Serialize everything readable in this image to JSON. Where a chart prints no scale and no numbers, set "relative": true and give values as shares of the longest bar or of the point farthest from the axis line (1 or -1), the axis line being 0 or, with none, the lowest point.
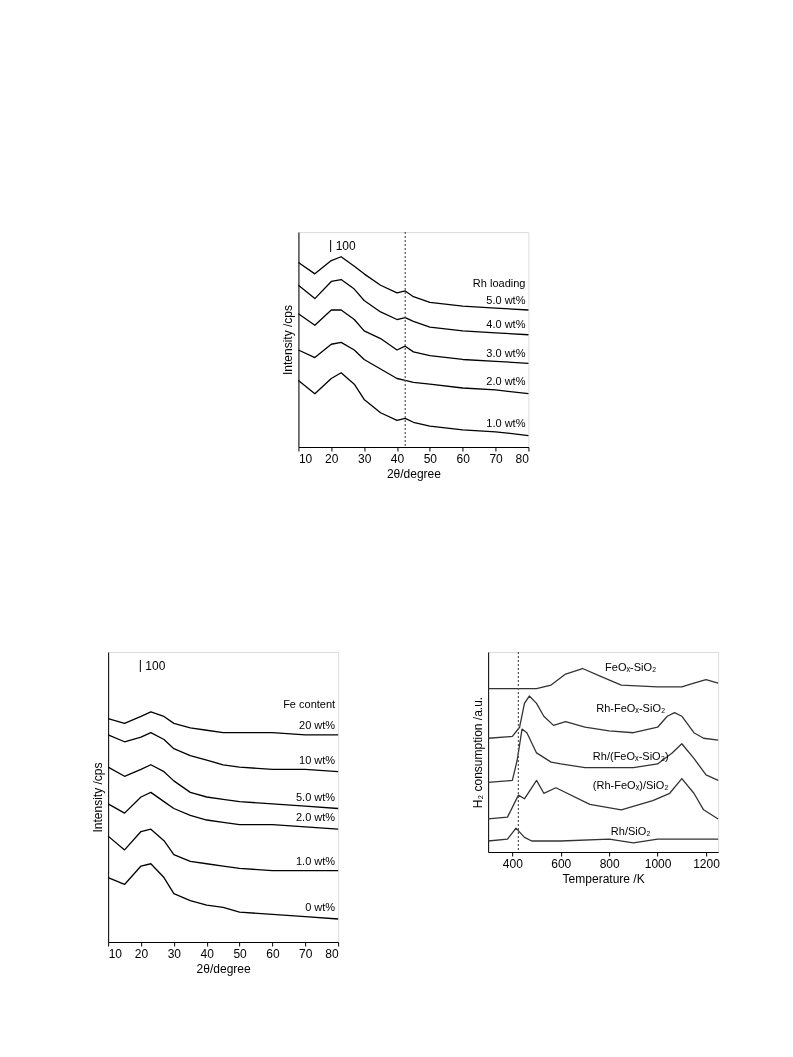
{
  "chart_data": [
    {
      "type": "line",
      "relative": true,
      "xlabel": "2θ/degree",
      "ylabel": "Intensity /cps",
      "legend_title": "Rh loading",
      "annotations": [
        "100"
      ],
      "xlim": [
        10,
        80
      ],
      "xticks": [
        10,
        20,
        30,
        40,
        50,
        60,
        70,
        80
      ],
      "grid": false,
      "line_style": "solid",
      "x": [
        10,
        15,
        20,
        23,
        27,
        30,
        35,
        40,
        42.5,
        45,
        50,
        60,
        70,
        80
      ],
      "ref_lines": [
        {
          "axis": "x",
          "value": 42.5,
          "line_style": "dotted",
          "color": "#555555"
        }
      ],
      "series": [
        {
          "name": "5.0 wt%",
          "color": "#000000",
          "values": [
            0.97,
            0.91,
            0.98,
            1,
            0.95,
            0.91,
            0.85,
            0.81,
            0.82,
            0.79,
            0.76,
            0.74,
            0.73,
            0.72
          ]
        },
        {
          "name": "4.0 wt%",
          "color": "#000000",
          "values": [
            0.85,
            0.78,
            0.87,
            0.88,
            0.83,
            0.77,
            0.71,
            0.67,
            0.68,
            0.66,
            0.63,
            0.61,
            0.6,
            0.59
          ]
        },
        {
          "name": "3.0 wt%",
          "color": "#000000",
          "values": [
            0.7,
            0.64,
            0.72,
            0.72,
            0.67,
            0.61,
            0.57,
            0.51,
            0.53,
            0.5,
            0.48,
            0.46,
            0.45,
            0.44
          ]
        },
        {
          "name": "2.0 wt%",
          "color": "#000000",
          "values": [
            0.51,
            0.47,
            0.54,
            0.55,
            0.51,
            0.46,
            0.41,
            0.36,
            0.35,
            0.34,
            0.33,
            0.31,
            0.3,
            0.28
          ]
        },
        {
          "name": "1.0 wt%",
          "color": "#000000",
          "values": [
            0.35,
            0.28,
            0.36,
            0.39,
            0.33,
            0.25,
            0.18,
            0.14,
            0.15,
            0.13,
            0.11,
            0.09,
            0.08,
            0.06
          ]
        }
      ]
    },
    {
      "type": "line",
      "relative": true,
      "xlabel": "2θ/degree",
      "ylabel": "Intensity /cps",
      "legend_title": "Fe content",
      "annotations": [
        "100"
      ],
      "xlim": [
        10,
        80
      ],
      "xticks": [
        10,
        20,
        30,
        40,
        50,
        60,
        70,
        80
      ],
      "grid": false,
      "line_style": "solid",
      "x": [
        10,
        15,
        20,
        23,
        27,
        30,
        35,
        40,
        45,
        50,
        60,
        70,
        80
      ],
      "series": [
        {
          "name": "20 wt%",
          "color": "#000000",
          "values": [
            0.97,
            0.95,
            0.98,
            1,
            0.98,
            0.95,
            0.93,
            0.92,
            0.91,
            0.91,
            0.91,
            0.9,
            0.9
          ]
        },
        {
          "name": "10 wt%",
          "color": "#000000",
          "values": [
            0.9,
            0.87,
            0.89,
            0.91,
            0.88,
            0.84,
            0.81,
            0.79,
            0.77,
            0.76,
            0.75,
            0.75,
            0.74
          ]
        },
        {
          "name": "5.0 wt%",
          "color": "#000000",
          "values": [
            0.76,
            0.72,
            0.75,
            0.77,
            0.74,
            0.7,
            0.65,
            0.63,
            0.62,
            0.61,
            0.6,
            0.59,
            0.58
          ]
        },
        {
          "name": "2.0 wt%",
          "color": "#000000",
          "values": [
            0.6,
            0.56,
            0.63,
            0.65,
            0.61,
            0.58,
            0.55,
            0.53,
            0.52,
            0.51,
            0.51,
            0.5,
            0.49
          ]
        },
        {
          "name": "1.0 wt%",
          "color": "#000000",
          "values": [
            0.46,
            0.4,
            0.48,
            0.49,
            0.44,
            0.38,
            0.35,
            0.34,
            0.33,
            0.32,
            0.31,
            0.31,
            0.31
          ]
        },
        {
          "name": "0 wt%",
          "color": "#000000",
          "values": [
            0.28,
            0.25,
            0.33,
            0.34,
            0.28,
            0.21,
            0.18,
            0.16,
            0.15,
            0.13,
            0.12,
            0.11,
            0.1
          ]
        }
      ]
    },
    {
      "type": "line",
      "relative": true,
      "xlabel": "Temperature /K",
      "ylabel": "H₂ consumption /a.u.",
      "xlim": [
        300,
        1250
      ],
      "xticks": [
        400,
        600,
        800,
        {
          "value": 1000,
          "label": "1000"
        },
        {
          "value": 1200,
          "label": "1200"
        }
      ],
      "grid": false,
      "line_style": "solid",
      "ref_lines": [
        {
          "axis": "x",
          "value": 425,
          "line_style": "dotted",
          "color": "#555555"
        }
      ],
      "series": [
        {
          "name": "FeOₓ-SiO₂",
          "color": "#333333",
          "x": [
            300,
            500,
            560,
            620,
            690,
            760,
            850,
            1000,
            1100,
            1150,
            1200,
            1250
          ],
          "values": [
            0.89,
            0.89,
            0.91,
            0.97,
            1,
            0.96,
            0.91,
            0.9,
            0.9,
            0.92,
            0.94,
            0.92
          ]
        },
        {
          "name": "Rh-FeOₓ-SiO₂",
          "color": "#333333",
          "x": [
            300,
            400,
            430,
            450,
            470,
            500,
            530,
            570,
            620,
            700,
            800,
            900,
            1000,
            1040,
            1070,
            1100,
            1150,
            1190,
            1250
          ],
          "values": [
            0.62,
            0.63,
            0.68,
            0.81,
            0.85,
            0.81,
            0.74,
            0.69,
            0.71,
            0.68,
            0.66,
            0.65,
            0.68,
            0.74,
            0.76,
            0.74,
            0.65,
            0.62,
            0.61
          ]
        },
        {
          "name": "Rh/(FeOₓ-SiO₂)",
          "color": "#333333",
          "x": [
            300,
            400,
            420,
            440,
            460,
            500,
            560,
            600,
            700,
            800,
            900,
            1000,
            1060,
            1100,
            1150,
            1200,
            1250
          ],
          "values": [
            0.38,
            0.39,
            0.5,
            0.67,
            0.65,
            0.54,
            0.49,
            0.48,
            0.46,
            0.46,
            0.46,
            0.48,
            0.54,
            0.59,
            0.51,
            0.42,
            0.39
          ]
        },
        {
          "name": "(Rh-FeOₓ)/SiO₂",
          "color": "#333333",
          "x": [
            300,
            380,
            425,
            450,
            500,
            530,
            580,
            720,
            850,
            980,
            1050,
            1100,
            1150,
            1190,
            1250
          ],
          "values": [
            0.18,
            0.19,
            0.31,
            0.29,
            0.39,
            0.32,
            0.35,
            0.26,
            0.23,
            0.28,
            0.32,
            0.4,
            0.32,
            0.23,
            0.18
          ]
        },
        {
          "name": "Rh/SiO₂",
          "color": "#333333",
          "x": [
            300,
            380,
            415,
            450,
            480,
            600,
            800,
            900,
            1000,
            1250
          ],
          "values": [
            0.06,
            0.07,
            0.13,
            0.08,
            0.06,
            0.06,
            0.07,
            0.05,
            0.07,
            0.07
          ]
        }
      ]
    }
  ]
}
